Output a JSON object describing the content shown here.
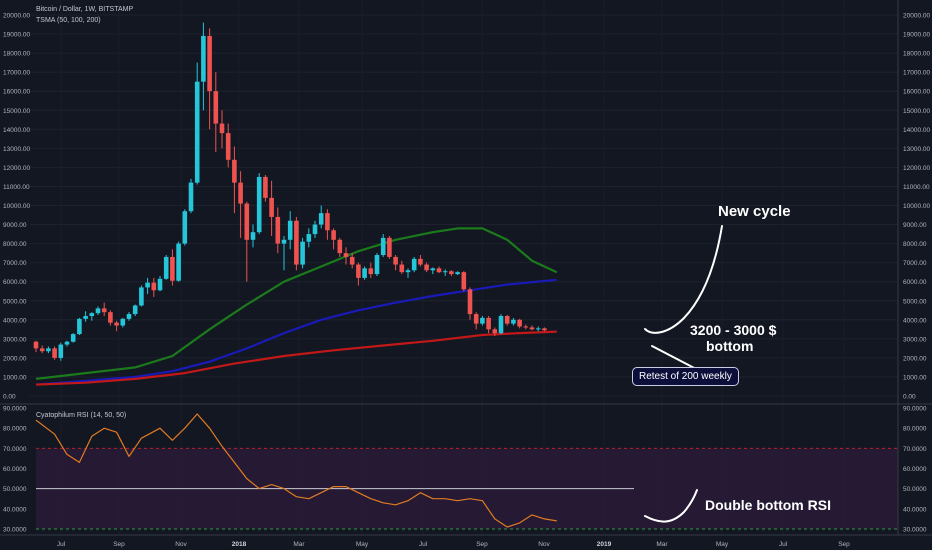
{
  "header": {
    "title": "Bitcoin / Dollar, 1W, BITSTAMP",
    "sma_legend": "TSMA (50, 100, 200)",
    "rsi_legend": "Cyatophilum RSI (14, 50, 50)"
  },
  "annotations": {
    "new_cycle": "New cycle",
    "price_range": "3200 - 3000 $",
    "bottom": "bottom",
    "retest": "Retest of 200 weekly",
    "double_bottom": "Double bottom RSI"
  },
  "colors": {
    "background": "#131722",
    "up": "#26c6da",
    "down": "#ef5350",
    "sma50": "#1b7a1b",
    "sma100": "#1a1ab8",
    "sma200": "#c21818",
    "rsi": "#e07b22"
  },
  "chart_data": [
    {
      "type": "candlestick",
      "title": "Bitcoin / Dollar, 1W, BITSTAMP",
      "ylim": [
        0,
        20000
      ],
      "y_ticks": [
        0,
        1000,
        2000,
        3000,
        4000,
        5000,
        6000,
        7000,
        8000,
        9000,
        10000,
        11000,
        12000,
        13000,
        14000,
        15000,
        16000,
        17000,
        18000,
        19000,
        20000
      ],
      "y_tick_labels": [
        "0.00",
        "1000.00",
        "2000.00",
        "3000.00",
        "4000.00",
        "5000.00",
        "6000.00",
        "7000.00",
        "8000.00",
        "9000.00",
        "10000.00",
        "11000.00",
        "12000.00",
        "13000.00",
        "14000.00",
        "15000.00",
        "16000.00",
        "17000.00",
        "18000.00",
        "19000.00",
        "20000.00"
      ],
      "x_labels": [
        "Jul",
        "Sep",
        "Nov",
        "2018",
        "Mar",
        "May",
        "Jul",
        "Sep",
        "Nov",
        "2019",
        "Mar",
        "May",
        "Jul",
        "Sep"
      ],
      "candles": [
        [
          2850,
          2900,
          2300,
          2500
        ],
        [
          2500,
          2650,
          2250,
          2350
        ],
        [
          2350,
          2600,
          2250,
          2500
        ],
        [
          2500,
          2600,
          1900,
          2000
        ],
        [
          2000,
          2800,
          1850,
          2700
        ],
        [
          2700,
          2900,
          2600,
          2850
        ],
        [
          2850,
          3300,
          2800,
          3250
        ],
        [
          3250,
          4100,
          3200,
          4050
        ],
        [
          4050,
          4450,
          3900,
          4200
        ],
        [
          4200,
          4400,
          3950,
          4350
        ],
        [
          4350,
          4700,
          4250,
          4600
        ],
        [
          4600,
          4900,
          4200,
          4400
        ],
        [
          4400,
          4500,
          3700,
          3850
        ],
        [
          3850,
          3950,
          3400,
          3700
        ],
        [
          3700,
          4100,
          3600,
          4050
        ],
        [
          4050,
          4400,
          3950,
          4300
        ],
        [
          4300,
          4800,
          4200,
          4750
        ],
        [
          4750,
          5800,
          4700,
          5700
        ],
        [
          5700,
          6200,
          5350,
          5950
        ],
        [
          5950,
          6200,
          5200,
          5550
        ],
        [
          5550,
          6300,
          5500,
          6150
        ],
        [
          6150,
          7400,
          6100,
          7300
        ],
        [
          7300,
          7700,
          5800,
          6050
        ],
        [
          6050,
          8100,
          6000,
          8000
        ],
        [
          8000,
          9800,
          7900,
          9700
        ],
        [
          9700,
          11400,
          9600,
          11200
        ],
        [
          11200,
          17500,
          11100,
          16500
        ],
        [
          16500,
          19600,
          15000,
          18900
        ],
        [
          18900,
          19300,
          14000,
          16000
        ],
        [
          16000,
          17000,
          12800,
          14300
        ],
        [
          14300,
          15000,
          13000,
          13800
        ],
        [
          13800,
          14300,
          12000,
          12400
        ],
        [
          12400,
          13100,
          9600,
          11200
        ],
        [
          11200,
          11800,
          8300,
          10100
        ],
        [
          10100,
          10200,
          6000,
          8200
        ],
        [
          8200,
          9000,
          7800,
          8600
        ],
        [
          8600,
          11700,
          8500,
          11500
        ],
        [
          11500,
          11600,
          10200,
          10400
        ],
        [
          10400,
          11300,
          8400,
          9400
        ],
        [
          9400,
          9900,
          7500,
          8000
        ],
        [
          8000,
          8400,
          6600,
          8200
        ],
        [
          8200,
          9700,
          7700,
          9200
        ],
        [
          9200,
          9400,
          6600,
          6900
        ],
        [
          6900,
          8300,
          6700,
          8100
        ],
        [
          8100,
          8800,
          7800,
          8500
        ],
        [
          8500,
          9200,
          8300,
          9000
        ],
        [
          9000,
          10000,
          8800,
          9600
        ],
        [
          9600,
          9800,
          8200,
          8700
        ],
        [
          8700,
          8800,
          7700,
          8200
        ],
        [
          8200,
          8300,
          7300,
          7500
        ],
        [
          7500,
          7800,
          6900,
          7300
        ],
        [
          7300,
          7500,
          6700,
          6900
        ],
        [
          6900,
          7000,
          5800,
          6200
        ],
        [
          6200,
          6800,
          6100,
          6700
        ],
        [
          6700,
          7000,
          6200,
          6400
        ],
        [
          6400,
          7500,
          6300,
          7400
        ],
        [
          7400,
          8500,
          7300,
          8300
        ],
        [
          8300,
          8400,
          7200,
          7300
        ],
        [
          7300,
          7400,
          6600,
          6900
        ],
        [
          6900,
          7100,
          6400,
          6500
        ],
        [
          6500,
          6700,
          6200,
          6600
        ],
        [
          6600,
          7300,
          6500,
          7200
        ],
        [
          7200,
          7400,
          6800,
          6900
        ],
        [
          6900,
          7000,
          6500,
          6600
        ],
        [
          6600,
          6750,
          6400,
          6700
        ],
        [
          6700,
          6800,
          6450,
          6500
        ],
        [
          6500,
          6650,
          6300,
          6550
        ],
        [
          6550,
          6600,
          6300,
          6400
        ],
        [
          6400,
          6550,
          6350,
          6500
        ],
        [
          6500,
          6550,
          5500,
          5600
        ],
        [
          5600,
          5700,
          4000,
          4300
        ],
        [
          4300,
          4400,
          3500,
          3800
        ],
        [
          3800,
          4200,
          3700,
          4100
        ],
        [
          4100,
          4200,
          3300,
          3500
        ],
        [
          3500,
          3600,
          3150,
          3300
        ],
        [
          3300,
          4300,
          3250,
          4200
        ],
        [
          4200,
          4250,
          3700,
          3800
        ],
        [
          3800,
          4100,
          3700,
          4000
        ],
        [
          4000,
          4050,
          3550,
          3650
        ],
        [
          3650,
          3750,
          3500,
          3600
        ],
        [
          3600,
          3700,
          3450,
          3500
        ],
        [
          3500,
          3650,
          3400,
          3550
        ],
        [
          3550,
          3600,
          3400,
          3450
        ]
      ],
      "series": [
        {
          "name": "SMA 50",
          "color": "#1b7a1b",
          "x": [
            0,
            8,
            16,
            22,
            28,
            34,
            40,
            46,
            52,
            58,
            64,
            68,
            72,
            76,
            80,
            84
          ],
          "values": [
            900,
            1200,
            1500,
            2100,
            3500,
            4800,
            6000,
            6800,
            7600,
            8200,
            8600,
            8800,
            8800,
            8200,
            7100,
            6500
          ]
        },
        {
          "name": "SMA 100",
          "color": "#1a1ab8",
          "x": [
            0,
            8,
            16,
            22,
            28,
            34,
            40,
            46,
            52,
            58,
            64,
            70,
            76,
            84
          ],
          "values": [
            600,
            800,
            1000,
            1300,
            1800,
            2500,
            3300,
            4000,
            4500,
            4900,
            5250,
            5550,
            5850,
            6100
          ]
        },
        {
          "name": "SMA 200",
          "color": "#c21818",
          "x": [
            0,
            8,
            16,
            24,
            32,
            40,
            48,
            56,
            64,
            72,
            78,
            84
          ],
          "values": [
            600,
            700,
            900,
            1200,
            1700,
            2100,
            2400,
            2650,
            2900,
            3200,
            3300,
            3380
          ]
        }
      ]
    },
    {
      "type": "line",
      "title": "Cyatophilum RSI (14, 50, 50)",
      "ylim": [
        28,
        90
      ],
      "y_ticks": [
        30,
        40,
        50,
        60,
        70,
        80,
        90
      ],
      "y_tick_labels": [
        "30.0000",
        "40.0000",
        "50.0000",
        "60.0000",
        "70.0000",
        "80.0000",
        "90.0000"
      ],
      "bands": {
        "upper": 70,
        "middle": 50,
        "lower": 30
      },
      "series": [
        {
          "name": "RSI",
          "color": "#e07b22",
          "x": [
            0,
            3,
            5,
            7,
            9,
            11,
            13,
            15,
            17,
            20,
            22,
            24,
            26,
            28,
            30,
            32,
            34,
            36,
            38,
            40,
            42,
            44,
            46,
            48,
            50,
            52,
            54,
            56,
            58,
            60,
            62,
            64,
            66,
            68,
            70,
            72,
            74,
            76,
            78,
            80,
            82,
            84
          ],
          "values": [
            84,
            77,
            67,
            63,
            76,
            80,
            78,
            66,
            75,
            80,
            74,
            80,
            87,
            80,
            71,
            63,
            55,
            50,
            52,
            50,
            46,
            45,
            48,
            51,
            51,
            48,
            45,
            43,
            42,
            44,
            48,
            45,
            45,
            44,
            45,
            44,
            35,
            31,
            33,
            37,
            35,
            34
          ]
        }
      ]
    }
  ]
}
